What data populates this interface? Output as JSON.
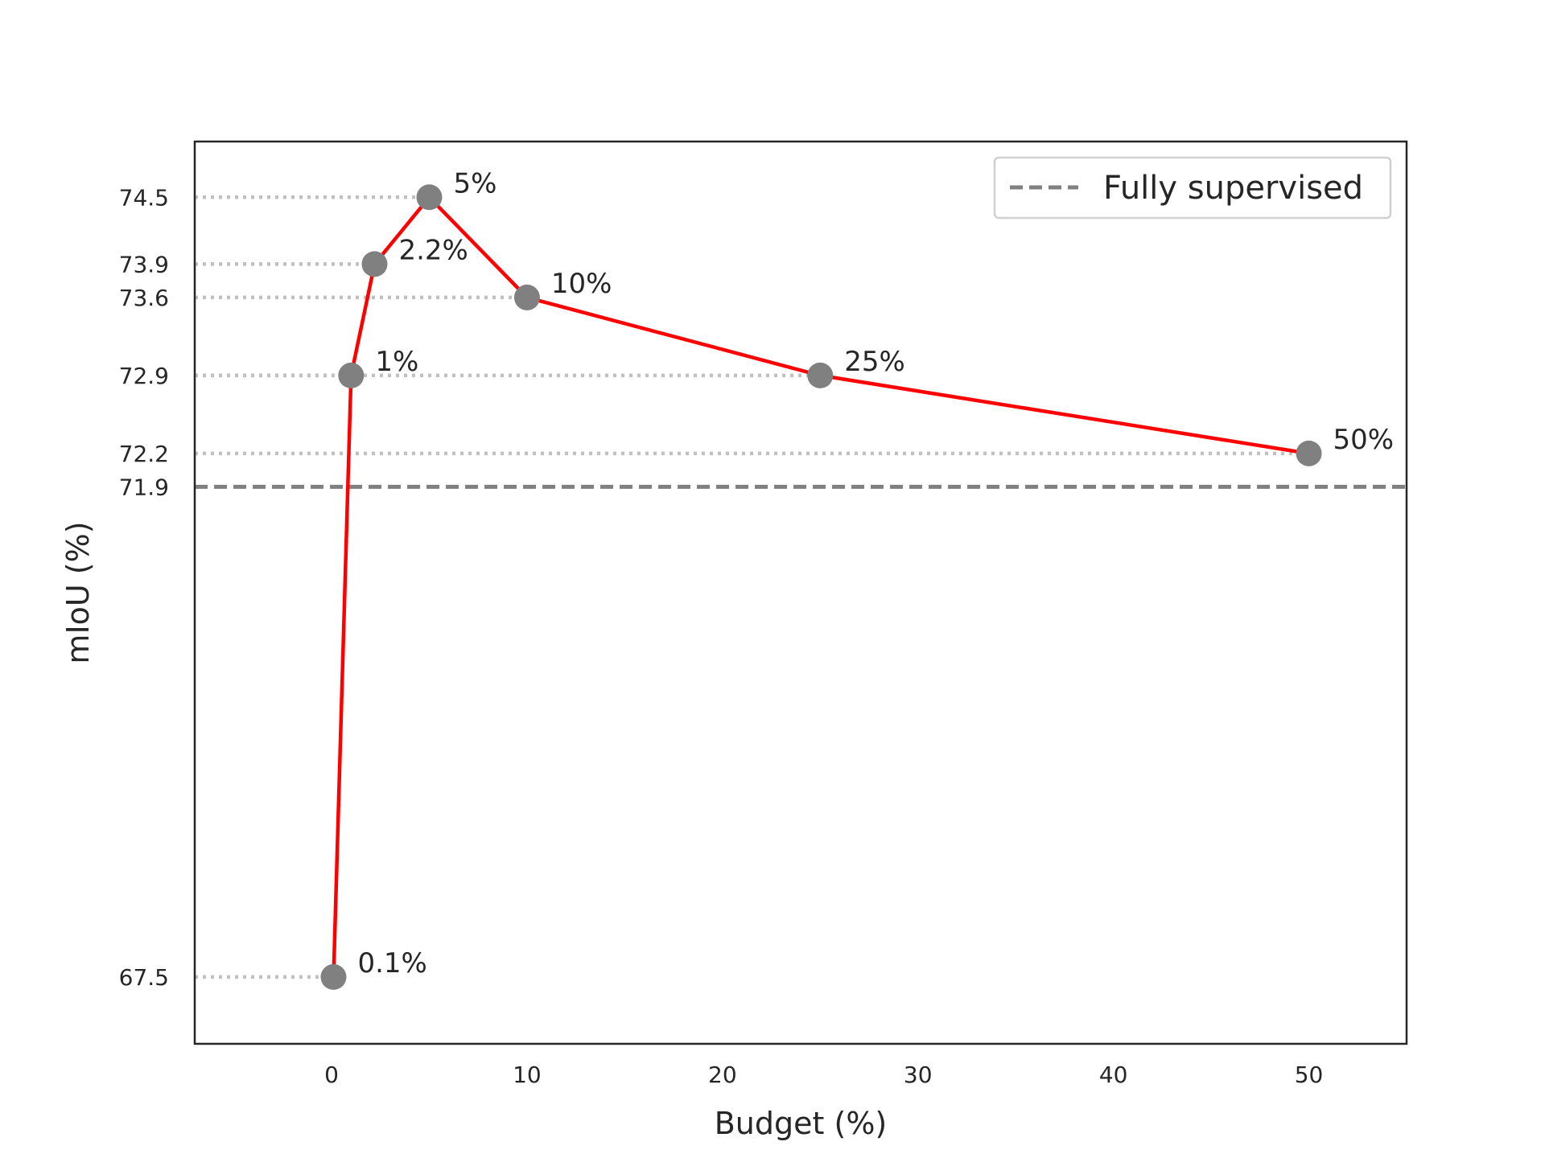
{
  "chart_data": {
    "type": "line",
    "xlabel": "Budget (%)",
    "ylabel": "mIoU (%)",
    "xlim": [
      -7,
      55
    ],
    "ylim": [
      66.9,
      75.0
    ],
    "x_ticks": [
      "0",
      "10",
      "20",
      "30",
      "40",
      "50"
    ],
    "y_ticks": [
      "67.5",
      "71.9",
      "72.2",
      "72.9",
      "73.6",
      "73.9",
      "74.5"
    ],
    "grid": false,
    "legend_position": "top-right",
    "series": [
      {
        "x": [
          0.1,
          1,
          2.2,
          5,
          10,
          25,
          50
        ],
        "y": [
          67.5,
          72.9,
          73.9,
          74.5,
          73.6,
          72.9,
          72.2
        ],
        "point_labels": [
          "0.1%",
          "1%",
          "2.2%",
          "5%",
          "10%",
          "25%",
          "50%"
        ]
      }
    ],
    "reference_lines": [
      {
        "name": "Fully supervised",
        "y": 71.9,
        "style": "dashed"
      }
    ],
    "colors": {
      "line": "#ff0000",
      "marker": "#808080",
      "reference": "#808080",
      "guide": "#c0c0c0",
      "axes": "#262626"
    }
  }
}
